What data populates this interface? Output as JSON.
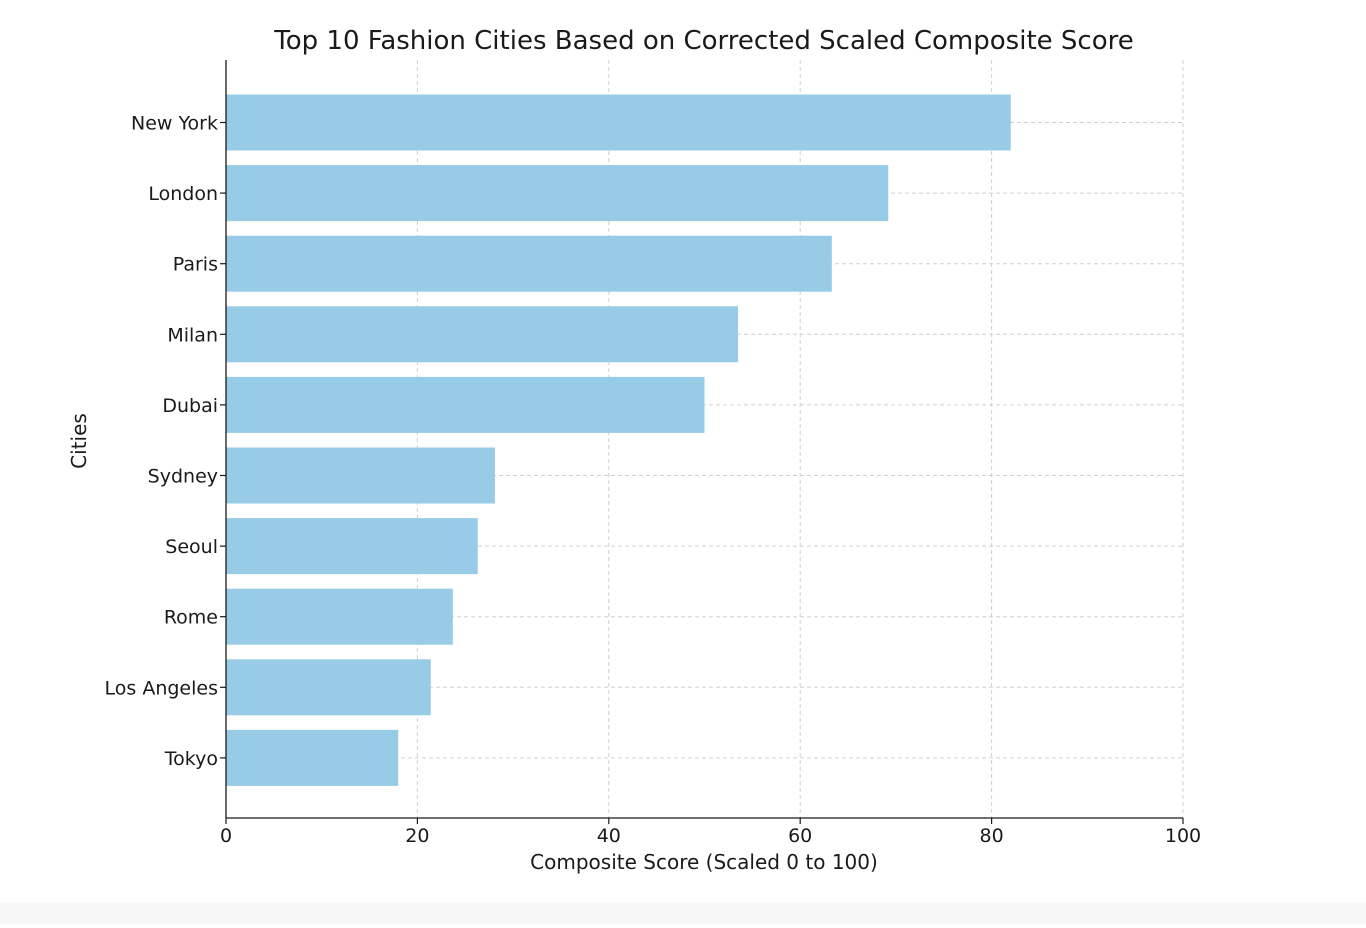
{
  "chart_data": {
    "type": "bar",
    "orientation": "horizontal",
    "title": "Top 10 Fashion Cities Based on Corrected Scaled Composite Score",
    "xlabel": "Composite Score (Scaled 0 to 100)",
    "ylabel": "Cities",
    "xlim": [
      0,
      100
    ],
    "xticks": [
      0,
      20,
      40,
      60,
      80,
      100
    ],
    "categories": [
      "New York",
      "London",
      "Paris",
      "Milan",
      "Dubai",
      "Sydney",
      "Seoul",
      "Rome",
      "Los Angeles",
      "Tokyo"
    ],
    "values": [
      82.0,
      69.2,
      63.3,
      53.5,
      50.0,
      28.1,
      26.3,
      23.7,
      21.4,
      18.0
    ],
    "bar_color": "#97cbe6",
    "grid": true,
    "grid_style": "dashed"
  }
}
